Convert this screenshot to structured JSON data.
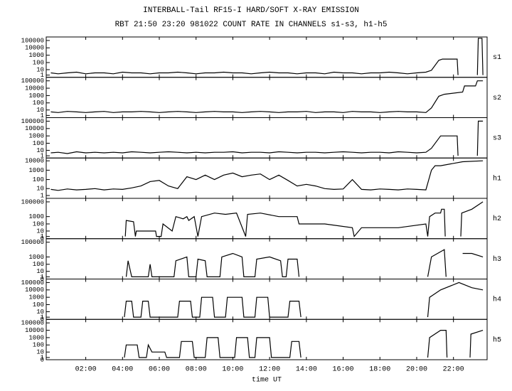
{
  "chart_data": [
    {
      "type": "line",
      "title": "INTERBALL-Tail RF15-I HARD/SOFT X-RAY EMISSION",
      "subtitle": "RBT 21:50 23:20 981022  COUNT RATE IN CHANNELS s1-s3, h1-h5",
      "label": "s1",
      "color": "#000000",
      "xlim": [
        -0.15,
        23.83
      ],
      "yscale": "log1p",
      "ylim": [
        0,
        300000
      ],
      "yticks": [
        1,
        10,
        100,
        1000,
        10000,
        100000
      ],
      "x": [
        0.1,
        0.5,
        1,
        1.5,
        2,
        2.5,
        3,
        3.5,
        4,
        4.5,
        5,
        5.5,
        6,
        6.5,
        7,
        7.5,
        8,
        8.5,
        9,
        9.5,
        10,
        10.5,
        11,
        11.5,
        12,
        12.5,
        13,
        13.5,
        14,
        14.5,
        15,
        15.5,
        16,
        16.5,
        17,
        17.5,
        18,
        18.5,
        19,
        19.5,
        20,
        20.5,
        20.8,
        21.2,
        21.4,
        22.2,
        22.25,
        22.3,
        23.3,
        23.35,
        23.55,
        23.6
      ],
      "values": [
        3,
        2,
        3,
        4,
        2,
        3,
        3,
        2,
        4,
        3,
        3,
        2,
        3,
        3,
        4,
        3,
        2,
        3,
        3,
        4,
        3,
        3,
        2,
        3,
        4,
        3,
        3,
        2,
        3,
        3,
        2,
        4,
        3,
        3,
        2,
        3,
        3,
        4,
        3,
        2,
        3,
        4,
        8,
        200,
        300,
        300,
        1,
        null,
        1,
        200000,
        200000,
        1
      ]
    },
    {
      "type": "line",
      "label": "s2",
      "color": "#000000",
      "xlim": [
        -0.15,
        23.83
      ],
      "yscale": "log1p",
      "ylim": [
        0,
        300000
      ],
      "yticks": [
        1,
        10,
        100,
        1000,
        10000,
        100000
      ],
      "x": [
        0.1,
        0.5,
        1,
        1.5,
        2,
        2.5,
        3,
        3.5,
        4,
        4.5,
        5,
        5.5,
        6,
        6.5,
        7,
        7.5,
        8,
        8.5,
        9,
        9.5,
        10,
        10.5,
        11,
        11.5,
        12,
        12.5,
        13,
        13.5,
        14,
        14.5,
        15,
        15.5,
        16,
        16.5,
        17,
        17.5,
        18,
        18.5,
        19,
        19.5,
        20,
        20.5,
        20.8,
        21.2,
        21.5,
        22.5,
        22.6,
        23.2,
        23.3,
        23.6
      ],
      "values": [
        5,
        4,
        6,
        5,
        4,
        5,
        6,
        4,
        5,
        5,
        6,
        5,
        4,
        5,
        6,
        5,
        4,
        5,
        6,
        5,
        5,
        4,
        5,
        6,
        5,
        4,
        5,
        5,
        6,
        4,
        5,
        5,
        4,
        6,
        5,
        5,
        4,
        5,
        6,
        5,
        5,
        4,
        20,
        800,
        1500,
        3000,
        20000,
        20000,
        100000,
        100000
      ]
    },
    {
      "type": "line",
      "label": "s3",
      "color": "#000000",
      "xlim": [
        -0.15,
        23.83
      ],
      "yscale": "log1p",
      "ylim": [
        0,
        300000
      ],
      "yticks": [
        1,
        10,
        100,
        1000,
        10000,
        100000
      ],
      "x": [
        0.1,
        0.5,
        1,
        1.5,
        2,
        2.5,
        3,
        3.5,
        4,
        4.5,
        5,
        5.5,
        6,
        6.5,
        7,
        7.5,
        8,
        8.5,
        9,
        9.5,
        10,
        10.5,
        11,
        11.5,
        12,
        12.5,
        13,
        13.5,
        14,
        14.5,
        15,
        15.5,
        16,
        16.5,
        17,
        17.5,
        18,
        18.5,
        19,
        19.5,
        20,
        20.5,
        20.8,
        21.3,
        22.2,
        22.25,
        22.3,
        23.3,
        23.35,
        23.6
      ],
      "values": [
        4,
        5,
        3,
        6,
        4,
        5,
        4,
        5,
        4,
        6,
        5,
        4,
        5,
        6,
        5,
        4,
        5,
        4,
        5,
        5,
        6,
        4,
        5,
        5,
        4,
        6,
        5,
        4,
        5,
        5,
        4,
        5,
        6,
        5,
        4,
        5,
        5,
        4,
        6,
        5,
        4,
        5,
        20,
        1000,
        1000,
        1,
        null,
        1,
        100000,
        100000
      ]
    },
    {
      "type": "line",
      "label": "h1",
      "color": "#000000",
      "xlim": [
        -0.15,
        23.83
      ],
      "yscale": "log1p",
      "ylim": [
        0,
        20000
      ],
      "yticks": [
        1,
        10,
        100,
        1000,
        10000
      ],
      "x": [
        0.1,
        0.5,
        1,
        1.5,
        2,
        2.5,
        3,
        3.5,
        4,
        4.5,
        5,
        5.5,
        6,
        6.5,
        7,
        7.5,
        8,
        8.5,
        9,
        9.5,
        10,
        10.5,
        11,
        11.5,
        12,
        12.5,
        13,
        13.5,
        14,
        14.5,
        15,
        15.5,
        16,
        16.5,
        17,
        17.5,
        18,
        18.5,
        19,
        19.5,
        20,
        20.5,
        20.8,
        21.0,
        21.3,
        22.5,
        23.6
      ],
      "values": [
        8,
        6,
        9,
        7,
        8,
        10,
        7,
        9,
        8,
        12,
        20,
        60,
        80,
        20,
        10,
        200,
        100,
        300,
        100,
        300,
        500,
        200,
        300,
        400,
        100,
        300,
        80,
        20,
        30,
        20,
        10,
        8,
        9,
        100,
        8,
        7,
        9,
        8,
        7,
        9,
        8,
        7,
        1000,
        3000,
        3000,
        8000,
        10000
      ]
    },
    {
      "type": "line",
      "label": "h2",
      "color": "#000000",
      "xlim": [
        -0.15,
        23.83
      ],
      "yscale": "log1p",
      "ylim": [
        0,
        300000
      ],
      "yticks": [
        0,
        1,
        10,
        100,
        1000,
        100000
      ],
      "x": [
        4.15,
        4.2,
        4.6,
        4.7,
        4.75,
        5.8,
        5.85,
        6.1,
        6.2,
        6.7,
        6.9,
        7.3,
        7.5,
        7.6,
        7.9,
        8.1,
        8.3,
        9.0,
        9.6,
        10.2,
        10.7,
        10.8,
        11.5,
        12.5,
        13.0,
        13.5,
        13.6,
        15.0,
        16.5,
        16.6,
        17.0,
        19.0,
        20.5,
        20.6,
        20.7,
        21.0,
        21.3,
        21.35,
        21.5,
        21.55,
        21.6,
        22.4,
        22.45,
        23.0,
        23.6
      ],
      "values": [
        1,
        300,
        200,
        1,
        10,
        10,
        1,
        1,
        100,
        10,
        1000,
        500,
        1000,
        300,
        1000,
        1,
        1000,
        3000,
        2000,
        3000,
        1,
        2000,
        3000,
        1000,
        1000,
        1000,
        100,
        100,
        30,
        1,
        30,
        30,
        100,
        1,
        1000,
        3000,
        3000,
        10000,
        10000,
        1,
        null,
        1,
        3000,
        10000,
        100000
      ]
    },
    {
      "type": "line",
      "label": "h3",
      "color": "#000000",
      "xlim": [
        -0.15,
        23.83
      ],
      "yscale": "log1p",
      "ylim": [
        0,
        300000
      ],
      "yticks": [
        0,
        1,
        10,
        100,
        1000,
        100000
      ],
      "x": [
        4.2,
        4.3,
        4.5,
        5.4,
        5.5,
        5.6,
        6.8,
        6.9,
        7.5,
        7.6,
        8.0,
        8.1,
        8.5,
        8.6,
        9.3,
        9.4,
        10.0,
        10.5,
        10.6,
        11.2,
        11.3,
        12.0,
        12.6,
        12.7,
        12.9,
        13.0,
        13.5,
        13.6,
        13.7,
        20.6,
        20.8,
        21.5,
        21.6,
        21.7,
        22.5,
        23.0,
        23.6
      ],
      "values": [
        1,
        300,
        1,
        1,
        100,
        1,
        1,
        300,
        1000,
        1,
        1,
        500,
        300,
        1,
        1,
        1000,
        3000,
        1000,
        1,
        1,
        500,
        1000,
        300,
        1,
        1,
        500,
        500,
        1,
        null,
        1,
        1000,
        10000,
        1,
        null,
        3000,
        3000,
        1000
      ]
    },
    {
      "type": "line",
      "label": "h4",
      "color": "#000000",
      "xlim": [
        -0.15,
        23.83
      ],
      "yscale": "log1p",
      "ylim": [
        0,
        300000
      ],
      "yticks": [
        0,
        1,
        10,
        100,
        1000,
        10000,
        100000
      ],
      "x": [
        4.1,
        4.2,
        4.5,
        4.6,
        5.0,
        5.1,
        5.4,
        5.5,
        7.0,
        7.1,
        7.7,
        7.8,
        8.2,
        8.3,
        8.9,
        9.0,
        9.6,
        9.7,
        10.5,
        10.6,
        11.2,
        11.3,
        11.9,
        12.0,
        13.0,
        13.1,
        13.6,
        13.7,
        13.8,
        20.6,
        20.7,
        21.3,
        22.3,
        23.0,
        23.6
      ],
      "values": [
        1,
        300,
        300,
        1,
        1,
        300,
        300,
        1,
        1,
        300,
        300,
        1,
        1,
        1000,
        1000,
        1,
        1,
        1000,
        1000,
        1,
        1,
        1000,
        1000,
        1,
        1,
        300,
        300,
        1,
        null,
        1,
        1000,
        10000,
        100000,
        20000,
        10000
      ]
    },
    {
      "type": "line",
      "label": "h5",
      "color": "#000000",
      "xlim": [
        -0.15,
        23.83
      ],
      "yscale": "log1p",
      "ylim": [
        0,
        300000
      ],
      "yticks": [
        0,
        1,
        10,
        100,
        1000,
        10000,
        100000
      ],
      "xlabel": "time UT",
      "xticks": [
        {
          "value": 2,
          "label": "02:00"
        },
        {
          "value": 4,
          "label": "04:00"
        },
        {
          "value": 6,
          "label": "06:00"
        },
        {
          "value": 8,
          "label": "08:00"
        },
        {
          "value": 10,
          "label": "10:00"
        },
        {
          "value": 12,
          "label": "12:00"
        },
        {
          "value": 14,
          "label": "14:00"
        },
        {
          "value": 16,
          "label": "16:00"
        },
        {
          "value": 18,
          "label": "18:00"
        },
        {
          "value": 20,
          "label": "20:00"
        },
        {
          "value": 22,
          "label": "22:00"
        }
      ],
      "x": [
        4.1,
        4.2,
        4.8,
        4.9,
        5.3,
        5.4,
        5.6,
        6.3,
        6.4,
        7.1,
        7.2,
        7.8,
        7.9,
        8.5,
        8.6,
        9.2,
        9.3,
        10.1,
        10.2,
        10.8,
        10.9,
        11.2,
        11.3,
        12.0,
        12.1,
        13.1,
        13.2,
        13.6,
        13.7,
        13.8,
        20.6,
        20.7,
        21.3,
        21.6,
        21.65,
        21.7,
        22.9,
        22.95,
        23.6
      ],
      "values": [
        1,
        100,
        100,
        1,
        1,
        100,
        10,
        10,
        1,
        1,
        300,
        300,
        1,
        1,
        1000,
        1000,
        1,
        1,
        1000,
        1000,
        1,
        1,
        1000,
        1000,
        1,
        1,
        300,
        300,
        1,
        null,
        1,
        1000,
        10000,
        10000,
        1,
        null,
        1,
        3000,
        10000
      ]
    }
  ]
}
